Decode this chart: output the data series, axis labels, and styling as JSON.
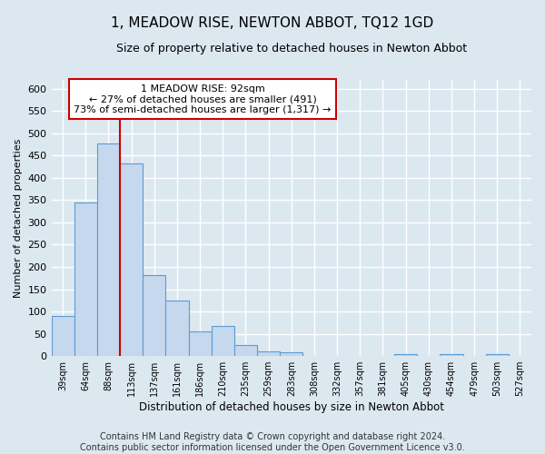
{
  "title": "1, MEADOW RISE, NEWTON ABBOT, TQ12 1GD",
  "subtitle": "Size of property relative to detached houses in Newton Abbot",
  "xlabel": "Distribution of detached houses by size in Newton Abbot",
  "ylabel": "Number of detached properties",
  "bar_labels": [
    "39sqm",
    "64sqm",
    "88sqm",
    "113sqm",
    "137sqm",
    "161sqm",
    "186sqm",
    "210sqm",
    "235sqm",
    "259sqm",
    "283sqm",
    "308sqm",
    "332sqm",
    "357sqm",
    "381sqm",
    "405sqm",
    "430sqm",
    "454sqm",
    "479sqm",
    "503sqm",
    "527sqm"
  ],
  "bar_values": [
    90,
    345,
    478,
    433,
    181,
    125,
    55,
    67,
    24,
    11,
    8,
    0,
    0,
    0,
    0,
    4,
    0,
    4,
    0,
    4,
    0
  ],
  "bar_color": "#c5d8ed",
  "bar_edge_color": "#5b9bd5",
  "ylim": [
    0,
    620
  ],
  "yticks": [
    0,
    50,
    100,
    150,
    200,
    250,
    300,
    350,
    400,
    450,
    500,
    550,
    600
  ],
  "property_bin_index": 2,
  "property_line_label": "1 MEADOW RISE: 92sqm",
  "annotation_line1": "← 27% of detached houses are smaller (491)",
  "annotation_line2": "73% of semi-detached houses are larger (1,317) →",
  "annotation_box_color": "#ffffff",
  "annotation_box_edge": "#cc0000",
  "red_line_color": "#cc0000",
  "footer1": "Contains HM Land Registry data © Crown copyright and database right 2024.",
  "footer2": "Contains public sector information licensed under the Open Government Licence v3.0.",
  "background_color": "#dce8f0",
  "plot_bg_color": "#dce8f0",
  "grid_color": "#ffffff",
  "title_fontsize": 11,
  "subtitle_fontsize": 9,
  "footer_fontsize": 7
}
